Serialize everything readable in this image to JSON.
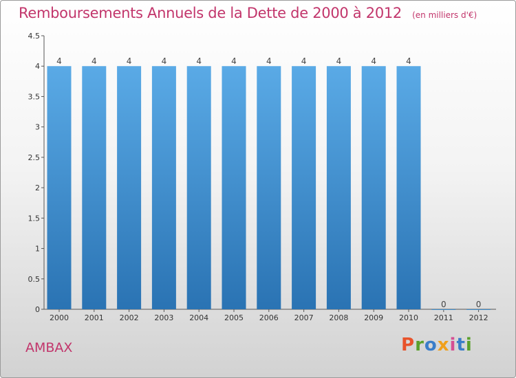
{
  "chart_data": {
    "type": "bar",
    "title": "Remboursements Annuels de la Dette de 2000 à 2012",
    "subtitle": "(en milliers d'€)",
    "categories": [
      "2000",
      "2001",
      "2002",
      "2003",
      "2004",
      "2005",
      "2006",
      "2007",
      "2008",
      "2009",
      "2010",
      "2011",
      "2012"
    ],
    "values": [
      4,
      4,
      4,
      4,
      4,
      4,
      4,
      4,
      4,
      4,
      4,
      0,
      0
    ],
    "value_labels": [
      "4",
      "4",
      "4",
      "4",
      "4",
      "4",
      "4",
      "4",
      "4",
      "4",
      "4",
      "0",
      "0"
    ],
    "xlabel": "",
    "ylabel": "",
    "ylim": [
      0,
      4.5
    ],
    "yticks": [
      0,
      0.5,
      1,
      1.5,
      2,
      2.5,
      3,
      3.5,
      4,
      4.5
    ],
    "ytick_labels": [
      "0",
      "0.5",
      "1",
      "1.5",
      "2",
      "2.5",
      "3",
      "3.5",
      "4",
      "4.5"
    ],
    "grid": false,
    "bar_color_top": "#5aaae6",
    "bar_color_bottom": "#2a73b3"
  },
  "footer": {
    "commune": "AMBAX",
    "brand": "Proxiti",
    "brand_colors": [
      "#e8532b",
      "#5aa02c",
      "#3a7dc9",
      "#f0a01c",
      "#d64f93",
      "#3a7dc9",
      "#5aa02c"
    ]
  },
  "colors": {
    "title": "#c2356b",
    "axis": "#555555"
  }
}
